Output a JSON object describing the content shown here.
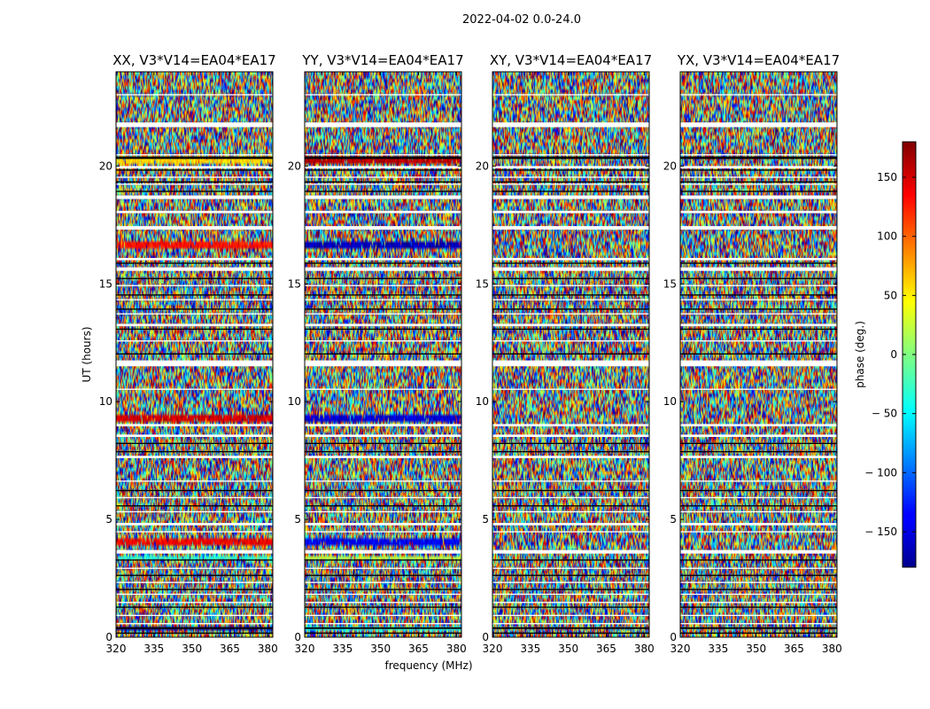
{
  "suptitle": "2022-04-02 0.0-24.0",
  "chart_data": {
    "type": "heatmap",
    "xlabel": "frequency (MHz)",
    "ylabel": "UT (hours)",
    "xlim": [
      320,
      382
    ],
    "ylim": [
      0,
      24
    ],
    "xticks": [
      320,
      335,
      350,
      365,
      380
    ],
    "yticks": [
      0,
      5,
      10,
      15,
      20
    ],
    "colorbar": {
      "label": "phase (deg.)",
      "range": [
        -180,
        180
      ],
      "ticks": [
        150,
        100,
        50,
        0,
        -50,
        -100,
        -150
      ],
      "tick_labels": [
        "150",
        "100",
        "50",
        "0",
        "− 50",
        "− 100",
        "− 150"
      ],
      "colormap": "jet"
    },
    "panels": [
      {
        "title": "XX, V3*V14=EA04*EA17",
        "bands": [
          {
            "ut": [
              20.1,
              20.35
            ],
            "phase": 60
          },
          {
            "ut": [
              16.5,
              16.75
            ],
            "phase": 130
          },
          {
            "ut": [
              9.15,
              9.45
            ],
            "phase": 150
          },
          {
            "ut": [
              3.95,
              4.15
            ],
            "phase": 140
          },
          {
            "ut": [
              3.3,
              3.5
            ],
            "phase": -30
          },
          {
            "ut": [
              0.3,
              0.45
            ],
            "phase": -170
          }
        ]
      },
      {
        "title": "YY, V3*V14=EA04*EA17",
        "bands": [
          {
            "ut": [
              20.1,
              20.35
            ],
            "phase": 160
          },
          {
            "ut": [
              16.5,
              16.75
            ],
            "phase": -160
          },
          {
            "ut": [
              9.1,
              9.4
            ],
            "phase": -150
          },
          {
            "ut": [
              3.95,
              4.15
            ],
            "phase": -140
          },
          {
            "ut": [
              3.3,
              3.5
            ],
            "phase": 20
          },
          {
            "ut": [
              0.3,
              0.45
            ],
            "phase": -40
          }
        ]
      },
      {
        "title": "XY, V3*V14=EA04*EA17",
        "bands": []
      },
      {
        "title": "YX, V3*V14=EA04*EA17",
        "bands": []
      }
    ],
    "flagged_ut": [
      [
        23.0,
        23.05
      ],
      [
        21.65,
        21.85
      ],
      [
        20.45,
        20.5
      ],
      [
        19.9,
        20.0
      ],
      [
        19.5,
        19.55
      ],
      [
        19.2,
        19.25
      ],
      [
        18.6,
        18.75
      ],
      [
        18.0,
        18.1
      ],
      [
        17.3,
        17.45
      ],
      [
        16.0,
        16.1
      ],
      [
        15.55,
        15.7
      ],
      [
        14.9,
        14.95
      ],
      [
        14.3,
        14.35
      ],
      [
        13.7,
        13.75
      ],
      [
        13.2,
        13.3
      ],
      [
        12.55,
        12.6
      ],
      [
        11.5,
        11.75
      ],
      [
        10.5,
        10.55
      ],
      [
        8.95,
        9.05
      ],
      [
        8.5,
        8.6
      ],
      [
        7.6,
        7.7
      ],
      [
        6.6,
        6.65
      ],
      [
        5.9,
        5.95
      ],
      [
        5.3,
        5.35
      ],
      [
        4.75,
        4.85
      ],
      [
        4.45,
        4.5
      ],
      [
        3.55,
        3.7
      ],
      [
        2.9,
        2.95
      ],
      [
        2.3,
        2.35
      ],
      [
        1.8,
        1.85
      ],
      [
        1.45,
        1.5
      ],
      [
        0.9,
        0.95
      ],
      [
        0.55,
        0.6
      ]
    ],
    "black_ut": [
      [
        20.3,
        20.4
      ],
      [
        19.8,
        19.85
      ],
      [
        19.3,
        19.35
      ],
      [
        18.9,
        18.95
      ],
      [
        15.85,
        15.9
      ],
      [
        15.2,
        15.25
      ],
      [
        14.5,
        14.55
      ],
      [
        13.9,
        13.95
      ],
      [
        13.05,
        13.1
      ],
      [
        12.0,
        12.05
      ],
      [
        8.2,
        8.25
      ],
      [
        7.85,
        7.9
      ],
      [
        6.2,
        6.25
      ],
      [
        5.55,
        5.6
      ],
      [
        3.25,
        3.3
      ],
      [
        2.6,
        2.65
      ],
      [
        2.0,
        2.05
      ],
      [
        1.25,
        1.3
      ],
      [
        0.35,
        0.42
      ],
      [
        0.15,
        0.2
      ]
    ]
  }
}
